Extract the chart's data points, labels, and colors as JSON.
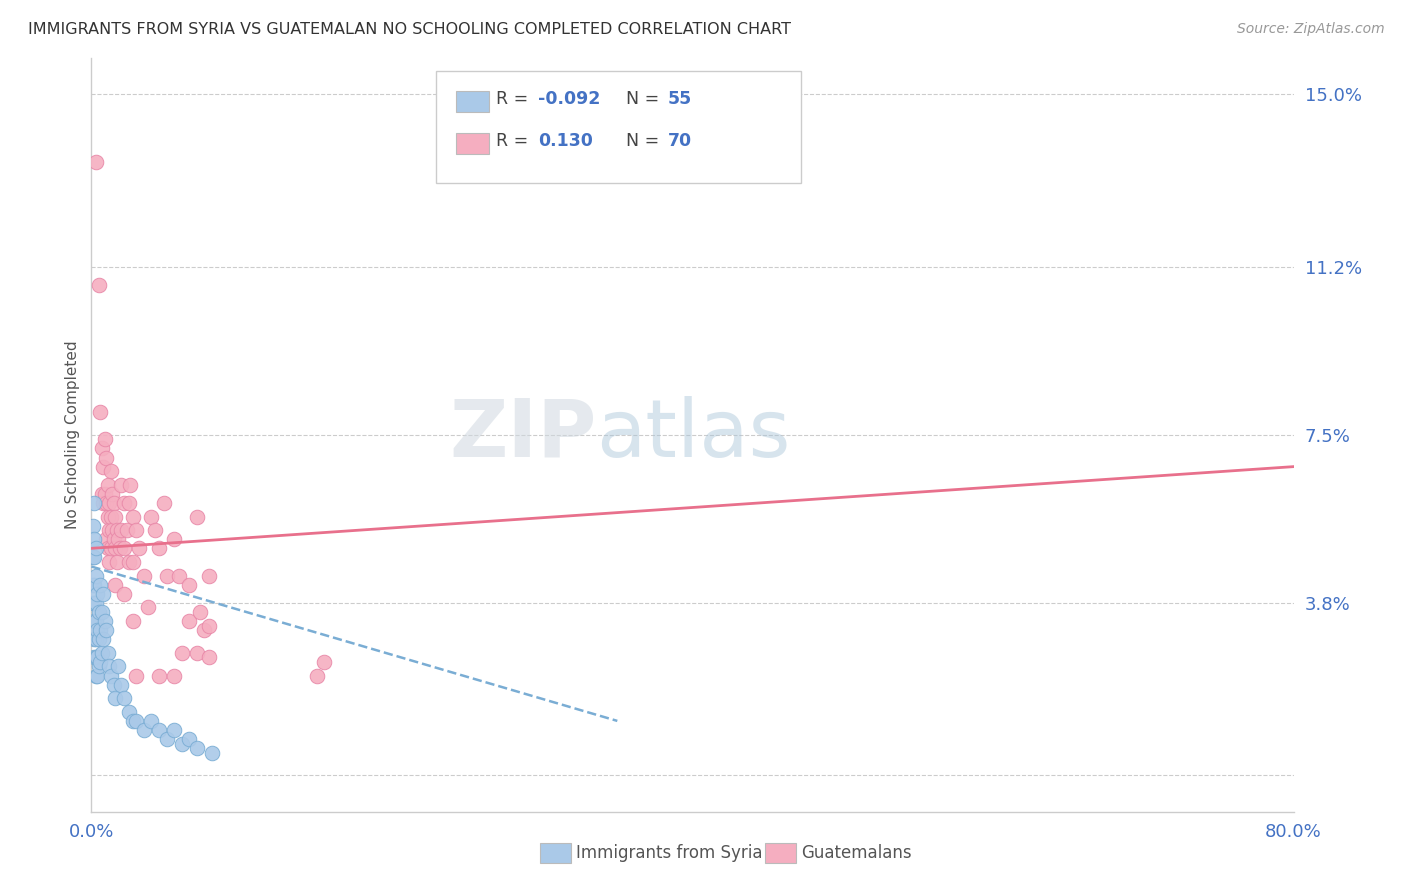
{
  "title": "IMMIGRANTS FROM SYRIA VS GUATEMALAN NO SCHOOLING COMPLETED CORRELATION CHART",
  "source_text": "Source: ZipAtlas.com",
  "ylabel": "No Schooling Completed",
  "xlim": [
    0.0,
    0.8
  ],
  "ylim": [
    -0.008,
    0.158
  ],
  "xticks": [
    0.0,
    0.1,
    0.2,
    0.3,
    0.4,
    0.5,
    0.6,
    0.7,
    0.8
  ],
  "xticklabels": [
    "0.0%",
    "",
    "",
    "",
    "",
    "",
    "",
    "",
    "80.0%"
  ],
  "yticks": [
    0.0,
    0.038,
    0.075,
    0.112,
    0.15
  ],
  "yticklabels": [
    "",
    "3.8%",
    "7.5%",
    "11.2%",
    "15.0%"
  ],
  "watermark": "ZIPatlas",
  "syria_color": "#aac9e8",
  "syria_edge": "#7aadd4",
  "guatemala_color": "#f5aec0",
  "guatemala_edge": "#e888a8",
  "syria_trend_color": "#7aadd4",
  "syria_trend_style": "--",
  "guatemala_trend_color": "#e8708c",
  "guatemala_trend_style": "-",
  "syria_dots": [
    [
      0.001,
      0.055
    ],
    [
      0.001,
      0.048
    ],
    [
      0.001,
      0.042
    ],
    [
      0.001,
      0.038
    ],
    [
      0.002,
      0.06
    ],
    [
      0.002,
      0.052
    ],
    [
      0.002,
      0.048
    ],
    [
      0.002,
      0.042
    ],
    [
      0.002,
      0.038
    ],
    [
      0.002,
      0.034
    ],
    [
      0.002,
      0.03
    ],
    [
      0.002,
      0.026
    ],
    [
      0.003,
      0.05
    ],
    [
      0.003,
      0.044
    ],
    [
      0.003,
      0.038
    ],
    [
      0.003,
      0.034
    ],
    [
      0.003,
      0.03
    ],
    [
      0.003,
      0.026
    ],
    [
      0.003,
      0.022
    ],
    [
      0.004,
      0.04
    ],
    [
      0.004,
      0.032
    ],
    [
      0.004,
      0.026
    ],
    [
      0.004,
      0.022
    ],
    [
      0.005,
      0.036
    ],
    [
      0.005,
      0.03
    ],
    [
      0.005,
      0.024
    ],
    [
      0.006,
      0.042
    ],
    [
      0.006,
      0.032
    ],
    [
      0.006,
      0.025
    ],
    [
      0.007,
      0.036
    ],
    [
      0.007,
      0.027
    ],
    [
      0.008,
      0.04
    ],
    [
      0.008,
      0.03
    ],
    [
      0.009,
      0.034
    ],
    [
      0.01,
      0.032
    ],
    [
      0.011,
      0.027
    ],
    [
      0.012,
      0.024
    ],
    [
      0.013,
      0.022
    ],
    [
      0.015,
      0.02
    ],
    [
      0.016,
      0.017
    ],
    [
      0.018,
      0.024
    ],
    [
      0.02,
      0.02
    ],
    [
      0.022,
      0.017
    ],
    [
      0.025,
      0.014
    ],
    [
      0.028,
      0.012
    ],
    [
      0.03,
      0.012
    ],
    [
      0.035,
      0.01
    ],
    [
      0.04,
      0.012
    ],
    [
      0.045,
      0.01
    ],
    [
      0.05,
      0.008
    ],
    [
      0.055,
      0.01
    ],
    [
      0.06,
      0.007
    ],
    [
      0.065,
      0.008
    ],
    [
      0.07,
      0.006
    ],
    [
      0.08,
      0.005
    ]
  ],
  "guatemala_dots": [
    [
      0.003,
      0.135
    ],
    [
      0.005,
      0.108
    ],
    [
      0.006,
      0.08
    ],
    [
      0.007,
      0.072
    ],
    [
      0.007,
      0.062
    ],
    [
      0.008,
      0.068
    ],
    [
      0.008,
      0.06
    ],
    [
      0.009,
      0.074
    ],
    [
      0.009,
      0.062
    ],
    [
      0.01,
      0.07
    ],
    [
      0.01,
      0.06
    ],
    [
      0.01,
      0.052
    ],
    [
      0.011,
      0.064
    ],
    [
      0.011,
      0.057
    ],
    [
      0.011,
      0.05
    ],
    [
      0.012,
      0.06
    ],
    [
      0.012,
      0.054
    ],
    [
      0.012,
      0.047
    ],
    [
      0.013,
      0.067
    ],
    [
      0.013,
      0.057
    ],
    [
      0.013,
      0.05
    ],
    [
      0.014,
      0.062
    ],
    [
      0.014,
      0.054
    ],
    [
      0.015,
      0.06
    ],
    [
      0.015,
      0.052
    ],
    [
      0.016,
      0.057
    ],
    [
      0.016,
      0.05
    ],
    [
      0.016,
      0.042
    ],
    [
      0.017,
      0.054
    ],
    [
      0.017,
      0.047
    ],
    [
      0.018,
      0.052
    ],
    [
      0.019,
      0.05
    ],
    [
      0.02,
      0.064
    ],
    [
      0.02,
      0.054
    ],
    [
      0.022,
      0.06
    ],
    [
      0.022,
      0.05
    ],
    [
      0.022,
      0.04
    ],
    [
      0.024,
      0.054
    ],
    [
      0.025,
      0.06
    ],
    [
      0.025,
      0.047
    ],
    [
      0.026,
      0.064
    ],
    [
      0.028,
      0.057
    ],
    [
      0.028,
      0.047
    ],
    [
      0.028,
      0.034
    ],
    [
      0.03,
      0.054
    ],
    [
      0.032,
      0.05
    ],
    [
      0.035,
      0.044
    ],
    [
      0.038,
      0.037
    ],
    [
      0.04,
      0.057
    ],
    [
      0.042,
      0.054
    ],
    [
      0.045,
      0.05
    ],
    [
      0.048,
      0.06
    ],
    [
      0.05,
      0.044
    ],
    [
      0.055,
      0.052
    ],
    [
      0.058,
      0.044
    ],
    [
      0.06,
      0.027
    ],
    [
      0.065,
      0.042
    ],
    [
      0.065,
      0.034
    ],
    [
      0.07,
      0.057
    ],
    [
      0.07,
      0.027
    ],
    [
      0.072,
      0.036
    ],
    [
      0.075,
      0.032
    ],
    [
      0.078,
      0.044
    ],
    [
      0.078,
      0.033
    ],
    [
      0.078,
      0.026
    ],
    [
      0.15,
      0.022
    ],
    [
      0.155,
      0.025
    ],
    [
      0.03,
      0.022
    ],
    [
      0.045,
      0.022
    ],
    [
      0.055,
      0.022
    ]
  ],
  "syria_trend_x": [
    0.0,
    0.35
  ],
  "syria_trend_y": [
    0.046,
    0.012
  ],
  "guatemala_trend_x": [
    0.0,
    0.8
  ],
  "guatemala_trend_y": [
    0.05,
    0.068
  ]
}
